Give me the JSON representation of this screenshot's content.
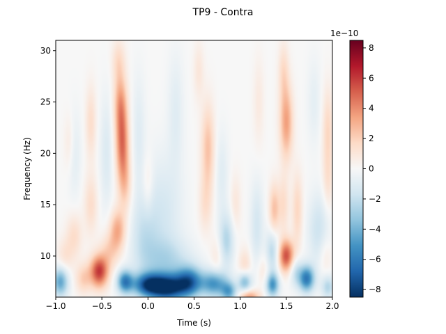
{
  "chart_data": {
    "type": "heatmap",
    "title": "TP9 - Contra",
    "xlabel": "Time (s)",
    "ylabel": "Frequency (Hz)",
    "xlim": [
      -1.0,
      2.0
    ],
    "ylim": [
      6,
      31
    ],
    "xticks": [
      -1.0,
      -0.5,
      0.0,
      0.5,
      1.0,
      1.5,
      2.0
    ],
    "xtick_labels": [
      "−1.0",
      "−0.5",
      "0.0",
      "0.5",
      "1.0",
      "1.5",
      "2.0"
    ],
    "yticks": [
      10,
      15,
      20,
      25,
      30
    ],
    "ytick_labels": [
      "10",
      "15",
      "20",
      "25",
      "30"
    ],
    "colormap": "RdBu_r",
    "colorbar": {
      "vmin": -8.5,
      "vmax": 8.5,
      "ticks": [
        -8,
        -6,
        -4,
        -2,
        0,
        2,
        4,
        6,
        8
      ],
      "tick_labels": [
        "−8",
        "−6",
        "−4",
        "−2",
        "0",
        "2",
        "4",
        "6",
        "8"
      ],
      "offset_label": "1e−10"
    },
    "features": [
      {
        "t": -0.28,
        "f": 21.0,
        "v": 4.5,
        "st": 0.05,
        "sf": 2.5
      },
      {
        "t": -0.3,
        "f": 25.0,
        "v": 3.0,
        "st": 0.05,
        "sf": 2.0
      },
      {
        "t": -0.25,
        "f": 17.0,
        "v": 2.0,
        "st": 0.05,
        "sf": 2.0
      },
      {
        "t": -0.32,
        "f": 29.0,
        "v": 1.5,
        "st": 0.05,
        "sf": 1.5
      },
      {
        "t": -0.33,
        "f": 12.5,
        "v": 3.2,
        "st": 0.06,
        "sf": 1.4
      },
      {
        "t": -0.42,
        "f": 10.5,
        "v": 1.8,
        "st": 0.07,
        "sf": 1.2
      },
      {
        "t": -0.53,
        "f": 8.5,
        "v": 6.0,
        "st": 0.07,
        "sf": 1.1
      },
      {
        "t": -0.7,
        "f": 7.8,
        "v": 2.0,
        "st": 0.06,
        "sf": 1.0
      },
      {
        "t": -0.62,
        "f": 23.0,
        "v": 1.5,
        "st": 0.04,
        "sf": 2.5
      },
      {
        "t": -0.62,
        "f": 15.0,
        "v": 1.5,
        "st": 0.05,
        "sf": 2.0
      },
      {
        "t": -0.8,
        "f": 12.0,
        "v": 1.5,
        "st": 0.06,
        "sf": 1.5
      },
      {
        "t": -0.9,
        "f": 10.0,
        "v": 1.2,
        "st": 0.06,
        "sf": 1.2
      },
      {
        "t": -0.85,
        "f": 21.0,
        "v": 1.0,
        "st": 0.04,
        "sf": 2.0
      },
      {
        "t": -0.95,
        "f": 7.5,
        "v": -4.5,
        "st": 0.06,
        "sf": 1.0
      },
      {
        "t": -0.8,
        "f": 20.0,
        "v": -1.0,
        "st": 0.05,
        "sf": 3.0
      },
      {
        "t": -0.45,
        "f": 20.0,
        "v": -1.2,
        "st": 0.05,
        "sf": 4.0
      },
      {
        "t": -0.1,
        "f": 22.0,
        "v": -1.0,
        "st": 0.05,
        "sf": 4.0
      },
      {
        "t": -0.05,
        "f": 12.0,
        "v": -1.5,
        "st": 0.1,
        "sf": 2.5
      },
      {
        "t": 0.0,
        "f": 17.0,
        "v": 1.0,
        "st": 0.04,
        "sf": 2.0
      },
      {
        "t": 0.15,
        "f": 14.0,
        "v": -1.5,
        "st": 0.15,
        "sf": 4.0
      },
      {
        "t": 0.2,
        "f": 9.5,
        "v": -2.0,
        "st": 0.2,
        "sf": 1.5
      },
      {
        "t": 0.3,
        "f": 24.0,
        "v": -1.0,
        "st": 0.06,
        "sf": 4.0
      },
      {
        "t": -0.25,
        "f": 7.5,
        "v": -5.5,
        "st": 0.06,
        "sf": 0.8
      },
      {
        "t": 0.0,
        "f": 7.2,
        "v": -6.5,
        "st": 0.12,
        "sf": 0.8
      },
      {
        "t": 0.22,
        "f": 6.9,
        "v": -8.0,
        "st": 0.14,
        "sf": 0.9
      },
      {
        "t": 0.45,
        "f": 7.5,
        "v": -6.0,
        "st": 0.1,
        "sf": 1.0
      },
      {
        "t": 0.72,
        "f": 7.3,
        "v": -5.0,
        "st": 0.1,
        "sf": 0.9
      },
      {
        "t": 0.88,
        "f": 6.5,
        "v": -4.0,
        "st": 0.06,
        "sf": 0.7
      },
      {
        "t": 0.65,
        "f": 20.5,
        "v": 2.5,
        "st": 0.05,
        "sf": 3.0
      },
      {
        "t": 0.62,
        "f": 15.0,
        "v": 1.2,
        "st": 0.05,
        "sf": 2.0
      },
      {
        "t": 0.55,
        "f": 28.0,
        "v": 1.0,
        "st": 0.04,
        "sf": 2.0
      },
      {
        "t": 0.75,
        "f": 10.0,
        "v": 1.0,
        "st": 0.05,
        "sf": 1.5
      },
      {
        "t": 0.85,
        "f": 11.5,
        "v": -2.5,
        "st": 0.06,
        "sf": 1.8
      },
      {
        "t": 0.8,
        "f": 18.0,
        "v": -1.0,
        "st": 0.05,
        "sf": 3.0
      },
      {
        "t": 0.95,
        "f": 15.0,
        "v": 1.0,
        "st": 0.04,
        "sf": 2.0
      },
      {
        "t": 1.05,
        "f": 9.0,
        "v": 1.5,
        "st": 0.05,
        "sf": 1.2
      },
      {
        "t": 1.05,
        "f": 7.5,
        "v": -4.0,
        "st": 0.05,
        "sf": 0.7
      },
      {
        "t": 1.1,
        "f": 6.0,
        "v": 3.5,
        "st": 0.08,
        "sf": 0.5
      },
      {
        "t": 1.18,
        "f": 13.0,
        "v": -1.5,
        "st": 0.05,
        "sf": 3.0
      },
      {
        "t": 1.25,
        "f": 8.5,
        "v": 1.0,
        "st": 0.05,
        "sf": 1.2
      },
      {
        "t": 1.35,
        "f": 7.2,
        "v": -5.0,
        "st": 0.05,
        "sf": 0.8
      },
      {
        "t": 1.37,
        "f": 14.5,
        "v": 2.5,
        "st": 0.04,
        "sf": 1.8
      },
      {
        "t": 1.35,
        "f": 10.5,
        "v": -2.5,
        "st": 0.05,
        "sf": 1.5
      },
      {
        "t": 1.5,
        "f": 10.0,
        "v": 5.5,
        "st": 0.06,
        "sf": 1.1
      },
      {
        "t": 1.47,
        "f": 15.0,
        "v": 1.5,
        "st": 0.04,
        "sf": 2.0
      },
      {
        "t": 1.5,
        "f": 23.0,
        "v": 3.5,
        "st": 0.05,
        "sf": 2.5
      },
      {
        "t": 1.47,
        "f": 28.0,
        "v": 1.5,
        "st": 0.04,
        "sf": 2.0
      },
      {
        "t": 1.62,
        "f": 14.5,
        "v": 1.8,
        "st": 0.04,
        "sf": 2.5
      },
      {
        "t": 1.6,
        "f": 8.5,
        "v": -2.0,
        "st": 0.05,
        "sf": 1.0
      },
      {
        "t": 1.72,
        "f": 7.8,
        "v": -6.0,
        "st": 0.06,
        "sf": 0.9
      },
      {
        "t": 1.85,
        "f": 12.5,
        "v": -1.8,
        "st": 0.08,
        "sf": 2.5
      },
      {
        "t": 1.95,
        "f": 22.0,
        "v": 1.8,
        "st": 0.04,
        "sf": 3.0
      },
      {
        "t": 1.95,
        "f": 17.0,
        "v": 1.0,
        "st": 0.04,
        "sf": 2.0
      },
      {
        "t": 1.92,
        "f": 10.0,
        "v": 1.0,
        "st": 0.05,
        "sf": 1.5
      },
      {
        "t": 1.95,
        "f": 7.0,
        "v": -2.5,
        "st": 0.05,
        "sf": 0.8
      },
      {
        "t": 1.8,
        "f": 25.0,
        "v": -0.8,
        "st": 0.05,
        "sf": 3.0
      },
      {
        "t": 1.2,
        "f": 25.0,
        "v": 0.8,
        "st": 0.04,
        "sf": 3.0
      }
    ]
  }
}
